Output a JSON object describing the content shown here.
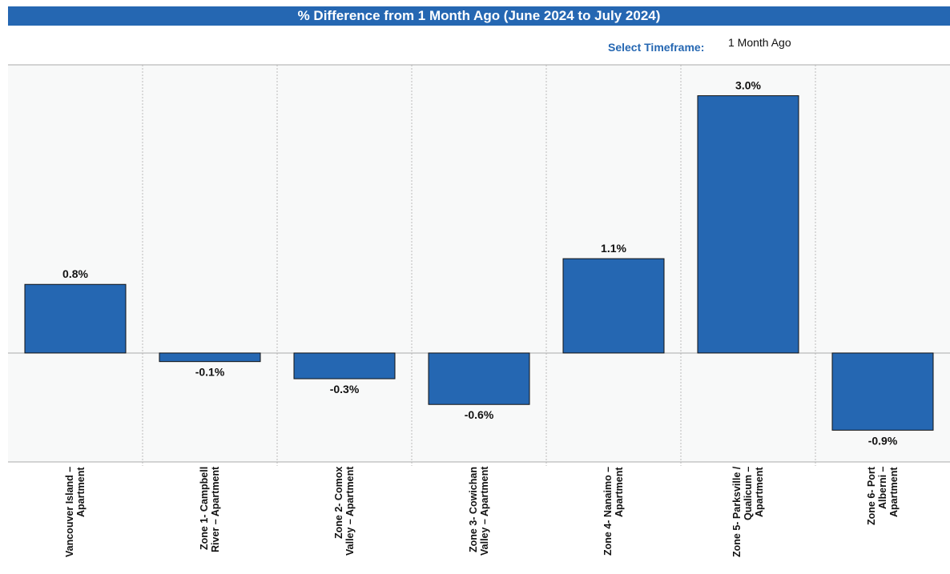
{
  "chart_data": {
    "type": "bar",
    "title": "% Difference from 1 Month Ago (June 2024 to July 2024)",
    "categories": [
      "Vancouver Island – Apartment",
      "Zone 1- Campbell River – Apartment",
      "Zone 2- Comox Valley – Apartment",
      "Zone 3- Cowichan Valley – Apartment",
      "Zone 4- Nanaimo – Apartment",
      "Zone 5- Parksville / Qualicum – Apartment",
      "Zone 6- Port Alberni – Apartment"
    ],
    "values": [
      0.8,
      -0.1,
      -0.3,
      -0.6,
      1.1,
      3.0,
      -0.9
    ],
    "value_labels": [
      "0.8%",
      "-0.1%",
      "-0.3%",
      "-0.6%",
      "1.1%",
      "3.0%",
      "-0.9%"
    ],
    "color": "#2567b2",
    "ylim": [
      -1.27,
      3.36
    ]
  },
  "controls": {
    "timeframe_label": "Select Timeframe:",
    "timeframe_value": "1 Month Ago"
  }
}
